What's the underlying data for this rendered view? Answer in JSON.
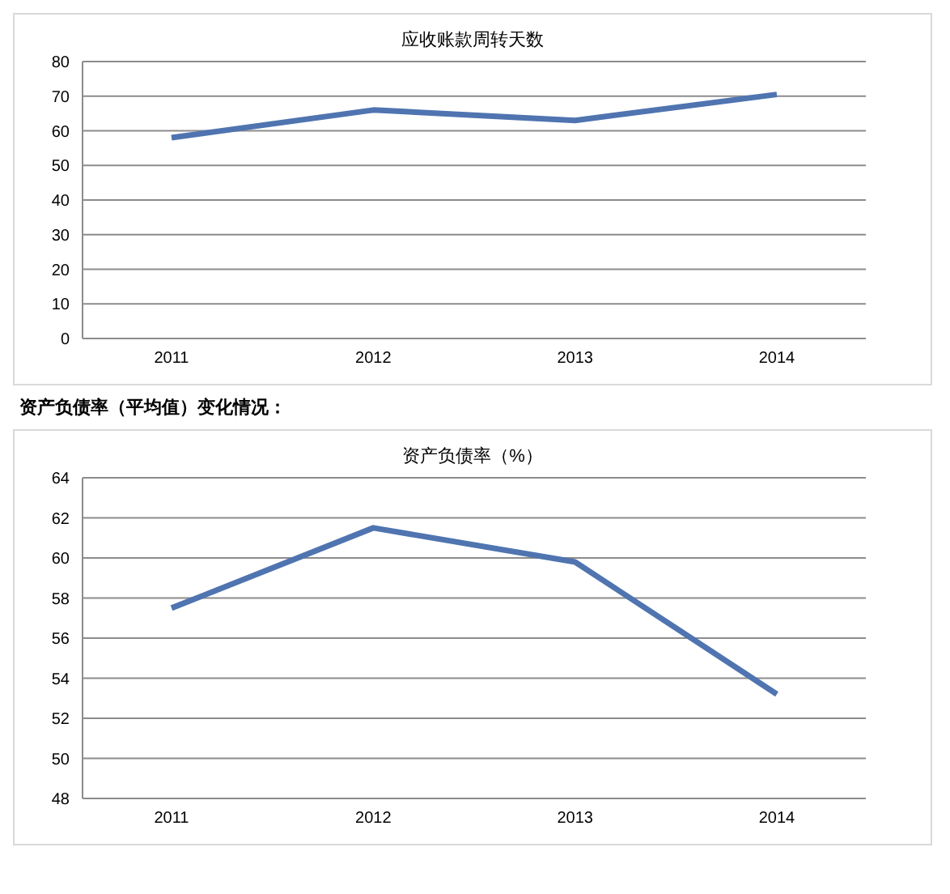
{
  "chart_data": [
    {
      "type": "line",
      "title": "应收账款周转天数",
      "categories": [
        "2011",
        "2012",
        "2013",
        "2014"
      ],
      "series": [
        {
          "color": "#4f74b0",
          "values": [
            58,
            66,
            63,
            70.5
          ]
        }
      ],
      "ylim": [
        0,
        80
      ],
      "yticks": [
        0,
        10,
        20,
        30,
        40,
        50,
        60,
        70,
        80
      ],
      "grid": "y",
      "legend": false,
      "marker": "none",
      "line_style": "solid"
    },
    {
      "type": "line",
      "title": "资产负债率（%）",
      "annotations": [
        "资产负债率（平均值）变化情况："
      ],
      "categories": [
        "2011",
        "2012",
        "2013",
        "2014"
      ],
      "series": [
        {
          "color": "#4f74b0",
          "values": [
            57.5,
            61.5,
            59.8,
            53.2
          ]
        }
      ],
      "ylim": [
        48,
        64
      ],
      "yticks": [
        48,
        50,
        52,
        54,
        56,
        58,
        60,
        62,
        64
      ],
      "grid": "y",
      "legend": false,
      "marker": "none",
      "line_style": "solid"
    }
  ]
}
